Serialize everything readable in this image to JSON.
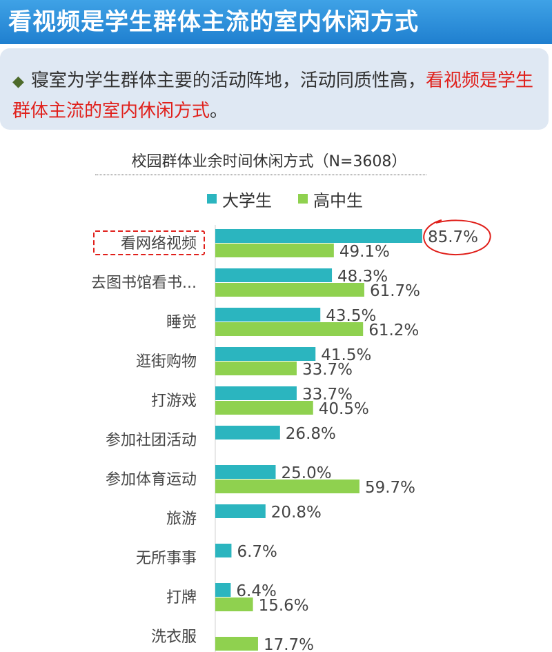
{
  "header": {
    "title": "看视频是学生群体主流的室内休闲方式"
  },
  "callout": {
    "bullet": "◆",
    "text_plain": "寝室为学生群体主要的活动阵地，活动同质性高，",
    "text_highlight": "看视频是学生群体主流的室内休闲方式",
    "text_end": "。"
  },
  "chart_data": {
    "type": "bar",
    "orientation": "horizontal",
    "title": "校园群体业余时间休闲方式（N=3608）",
    "categories": [
      "看网络视频",
      "去图书馆看书...",
      "睡觉",
      "逛街购物",
      "打游戏",
      "参加社团活动",
      "参加体育运动",
      "旅游",
      "无所事事",
      "打牌",
      "洗衣服"
    ],
    "series": [
      {
        "name": "大学生",
        "color": "#2bb5bf",
        "values": [
          85.7,
          48.3,
          43.5,
          41.5,
          33.7,
          26.8,
          25.0,
          20.8,
          6.7,
          6.4,
          null
        ],
        "labels": [
          "85.7%",
          "48.3%",
          "43.5%",
          "41.5%",
          "33.7%",
          "26.8%",
          "25.0%",
          "20.8%",
          "6.7%",
          "6.4%",
          null
        ]
      },
      {
        "name": "高中生",
        "color": "#8fd14f",
        "values": [
          49.1,
          61.7,
          61.2,
          33.7,
          40.5,
          null,
          59.7,
          null,
          null,
          15.6,
          17.7
        ],
        "labels": [
          "49.1%",
          "61.7%",
          "61.2%",
          "33.7%",
          "40.5%",
          null,
          "59.7%",
          null,
          null,
          "15.6%",
          "17.7%"
        ]
      }
    ],
    "highlighted_category": "看网络视频",
    "highlighted_value": "85.7%",
    "value_unit": "%",
    "legend_position": "top"
  }
}
